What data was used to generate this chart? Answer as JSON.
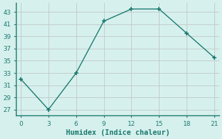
{
  "x": [
    0,
    3,
    6,
    9,
    12,
    15,
    18,
    21
  ],
  "y": [
    32,
    27,
    33,
    41.5,
    43.5,
    43.5,
    39.5,
    35.5
  ],
  "line_color": "#1a7a6e",
  "marker_color": "#1a7a6e",
  "bg_color": "#d6f0ee",
  "grid_color": "#c0c8c4",
  "spine_color": "#1a7a6e",
  "xlabel": "Humidex (Indice chaleur)",
  "xlim": [
    -0.5,
    21.5
  ],
  "ylim": [
    26,
    44.5
  ],
  "xticks": [
    0,
    3,
    6,
    9,
    12,
    15,
    18,
    21
  ],
  "yticks": [
    27,
    29,
    31,
    33,
    35,
    37,
    39,
    41,
    43
  ],
  "tick_fontsize": 6.5,
  "xlabel_fontsize": 7.5
}
